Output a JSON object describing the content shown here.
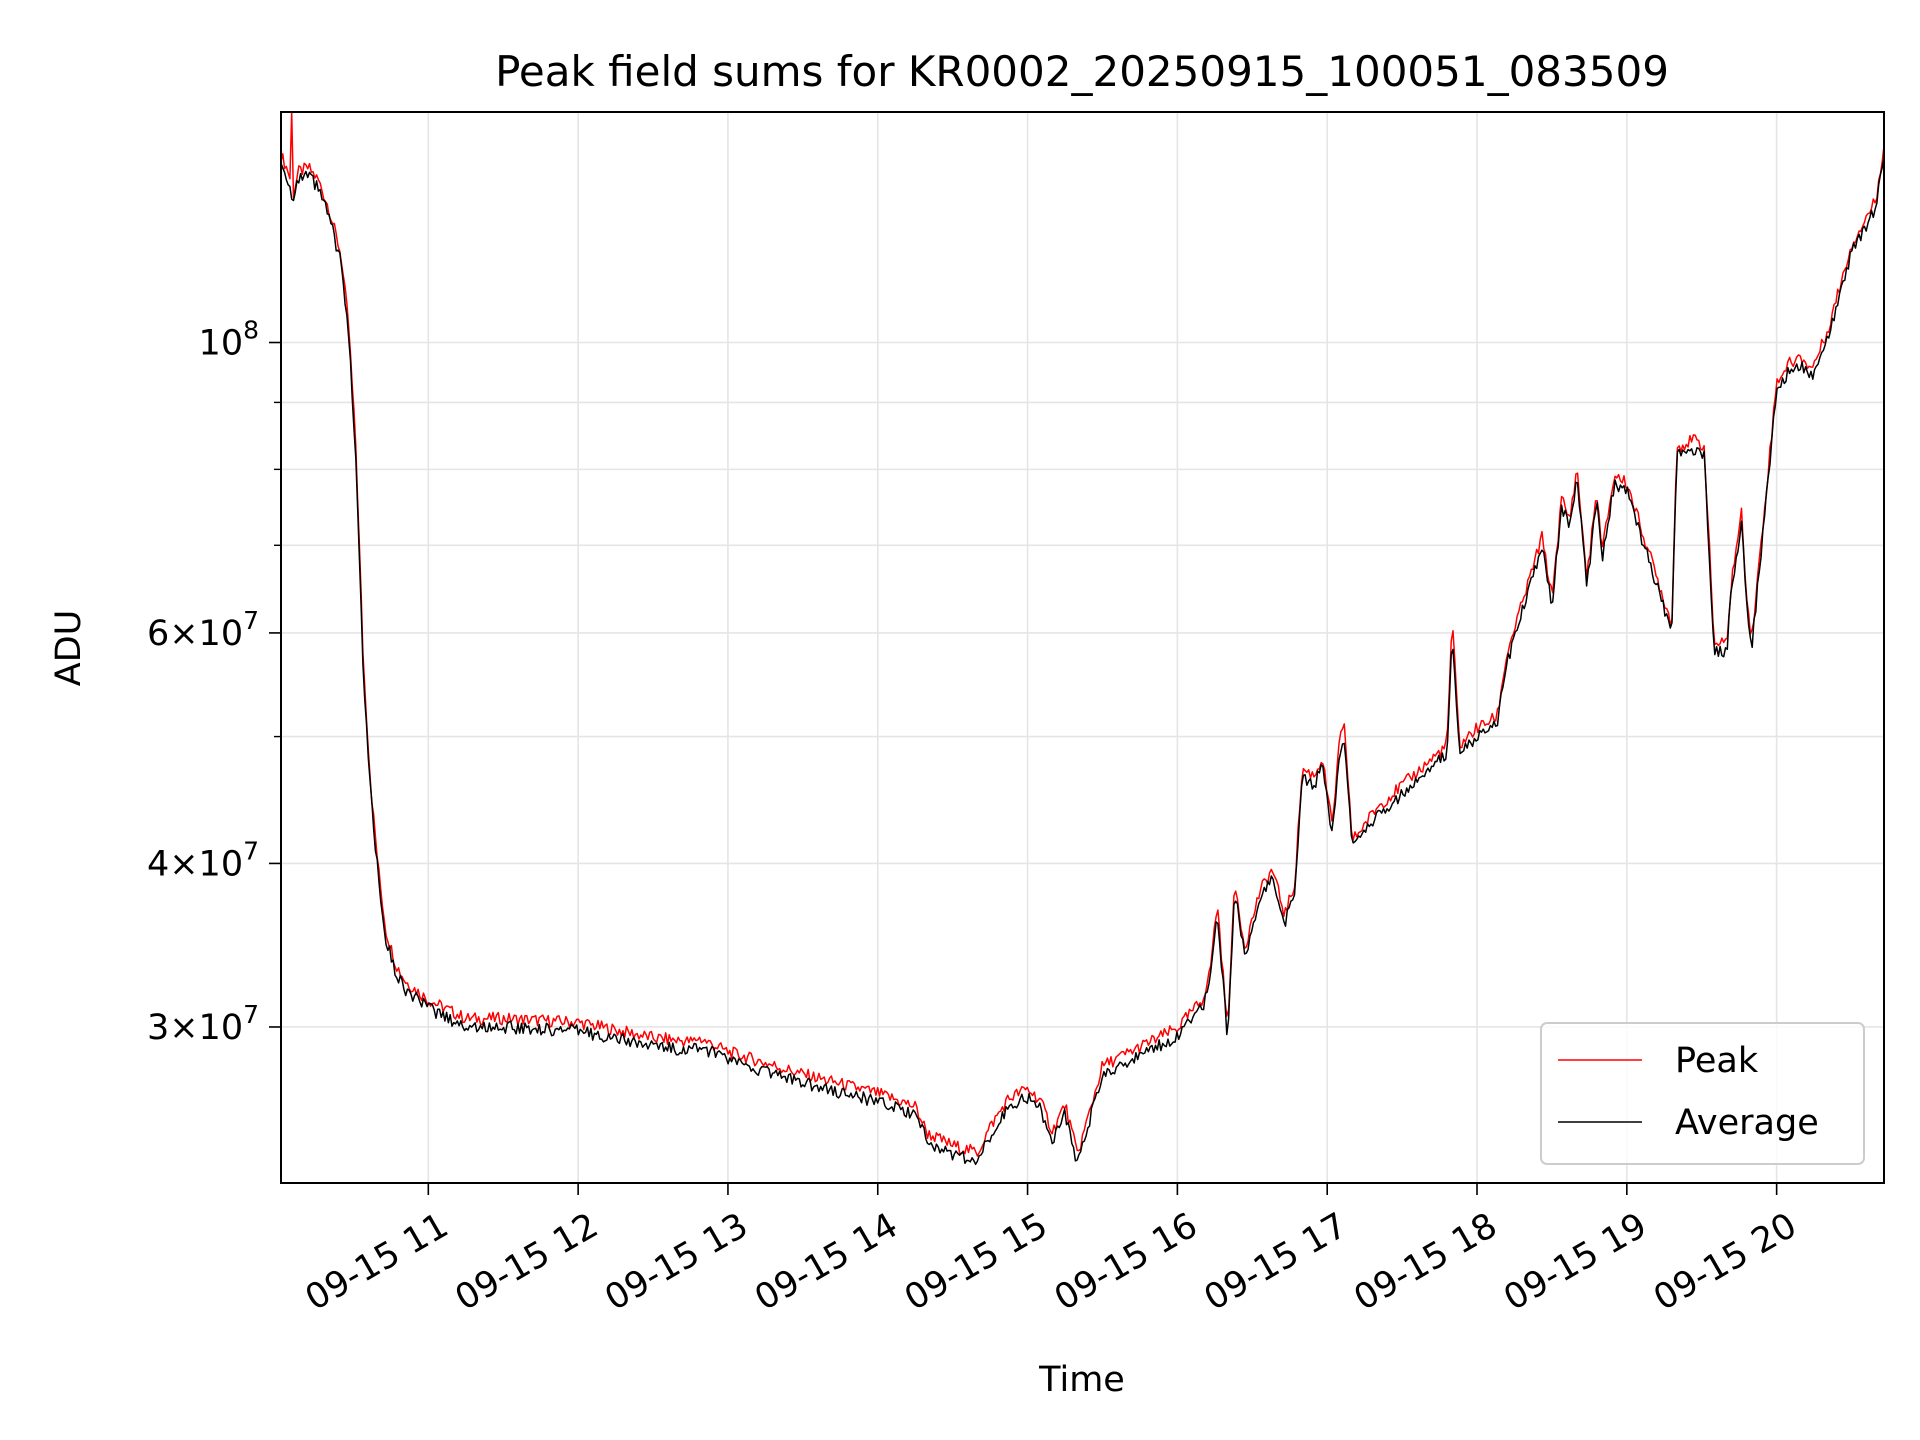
{
  "chart_data": {
    "type": "line",
    "title": "Peak field sums for KR0002_20250915_100051_083509",
    "xlabel": "Time",
    "ylabel": "ADU",
    "yscale": "log",
    "xlim": [
      "09-15 10:01",
      "09-15 20:43"
    ],
    "ylim": [
      22800000,
      150000000
    ],
    "x_ticks": [
      "09-15 11",
      "09-15 12",
      "09-15 13",
      "09-15 14",
      "09-15 15",
      "09-15 16",
      "09-15 17",
      "09-15 18",
      "09-15 19",
      "09-15 20"
    ],
    "y_ticks": [
      {
        "value": 30000000,
        "mantissa": "3",
        "exponent": "7"
      },
      {
        "value": 40000000,
        "mantissa": "4",
        "exponent": "7"
      },
      {
        "value": 60000000,
        "mantissa": "6",
        "exponent": "7"
      },
      {
        "value": 100000000,
        "mantissa": "",
        "exponent": "8"
      }
    ],
    "grid": true,
    "legend_position": "lower-right",
    "series": [
      {
        "name": "Peak",
        "color": "#ff0000",
        "offset": 1.015,
        "spike": {
          "x": "09-15 10:05",
          "y": 150000000
        }
      },
      {
        "name": "Average",
        "color": "#000000",
        "offset": 1.0
      }
    ],
    "x": [
      "09-15 10:01",
      "09-15 10:04",
      "09-15 10:06",
      "09-15 10:08",
      "09-15 10:12",
      "09-15 10:16",
      "09-15 10:20",
      "09-15 10:22",
      "09-15 10:25",
      "09-15 10:28",
      "09-15 10:31",
      "09-15 10:34",
      "09-15 10:37",
      "09-15 10:40",
      "09-15 10:43",
      "09-15 10:47",
      "09-15 10:51",
      "09-15 11:00",
      "09-15 11:15",
      "09-15 11:30",
      "09-15 12:00",
      "09-15 12:15",
      "09-15 12:30",
      "09-15 12:46",
      "09-15 12:48",
      "09-15 13:00",
      "09-15 13:30",
      "09-15 14:00",
      "09-15 14:15",
      "09-15 14:20",
      "09-15 14:30",
      "09-15 14:40",
      "09-15 14:45",
      "09-15 14:52",
      "09-15 14:56",
      "09-15 15:00",
      "09-15 15:05",
      "09-15 15:10",
      "09-15 15:15",
      "09-15 15:20",
      "09-15 15:30",
      "09-15 16:00",
      "09-15 16:10",
      "09-15 16:13",
      "09-15 16:16",
      "09-15 16:20",
      "09-15 16:23",
      "09-15 16:27",
      "09-15 16:33",
      "09-15 16:38",
      "09-15 16:43",
      "09-15 16:47",
      "09-15 16:50",
      "09-15 16:55",
      "09-15 16:58",
      "09-15 17:02",
      "09-15 17:05",
      "09-15 17:07",
      "09-15 17:10",
      "09-15 17:20",
      "09-15 17:40",
      "09-15 17:48",
      "09-15 17:50",
      "09-15 17:53",
      "09-15 18:00",
      "09-15 18:08",
      "09-15 18:12",
      "09-15 18:20",
      "09-15 18:26",
      "09-15 18:30",
      "09-15 18:34",
      "09-15 18:37",
      "09-15 18:40",
      "09-15 18:44",
      "09-15 18:48",
      "09-15 18:50",
      "09-15 18:55",
      "09-15 19:00",
      "09-15 19:18",
      "09-15 19:20",
      "09-15 19:27",
      "09-15 19:31",
      "09-15 19:35",
      "09-15 19:40",
      "09-15 19:42",
      "09-15 19:46",
      "09-15 19:48",
      "09-15 19:50",
      "09-15 19:55",
      "09-15 20:00",
      "09-15 20:05",
      "09-15 20:10",
      "09-15 20:14",
      "09-15 20:20",
      "09-15 20:30",
      "09-15 20:40",
      "09-15 20:43"
    ],
    "values": [
      137000000,
      133000000,
      128000000,
      133000000,
      134000000,
      131000000,
      125000000,
      121000000,
      115000000,
      102000000,
      82000000,
      56000000,
      45000000,
      39000000,
      35000000,
      33000000,
      32000000,
      31000000,
      30000000,
      30000000,
      29800000,
      29400000,
      29000000,
      28800000,
      29000000,
      28300000,
      27200000,
      26300000,
      25700000,
      24500000,
      24000000,
      23700000,
      24800000,
      26000000,
      26300000,
      26500000,
      26000000,
      24600000,
      25800000,
      23600000,
      27600000,
      29500000,
      31000000,
      32500000,
      36800000,
      29500000,
      38000000,
      34000000,
      37500000,
      39000000,
      36000000,
      38000000,
      46500000,
      46000000,
      47500000,
      42000000,
      49000000,
      50000000,
      41000000,
      43500000,
      47000000,
      48500000,
      60500000,
      48500000,
      50000000,
      51000000,
      57000000,
      64000000,
      70000000,
      63000000,
      75000000,
      72000000,
      79000000,
      65000000,
      76000000,
      68000000,
      78000000,
      77000000,
      60000000,
      82000000,
      83000000,
      82000000,
      58000000,
      58000000,
      65000000,
      73000000,
      63000000,
      58500000,
      73000000,
      92000000,
      95000000,
      96000000,
      94000000,
      100000000,
      117000000,
      127000000,
      140000000
    ]
  }
}
